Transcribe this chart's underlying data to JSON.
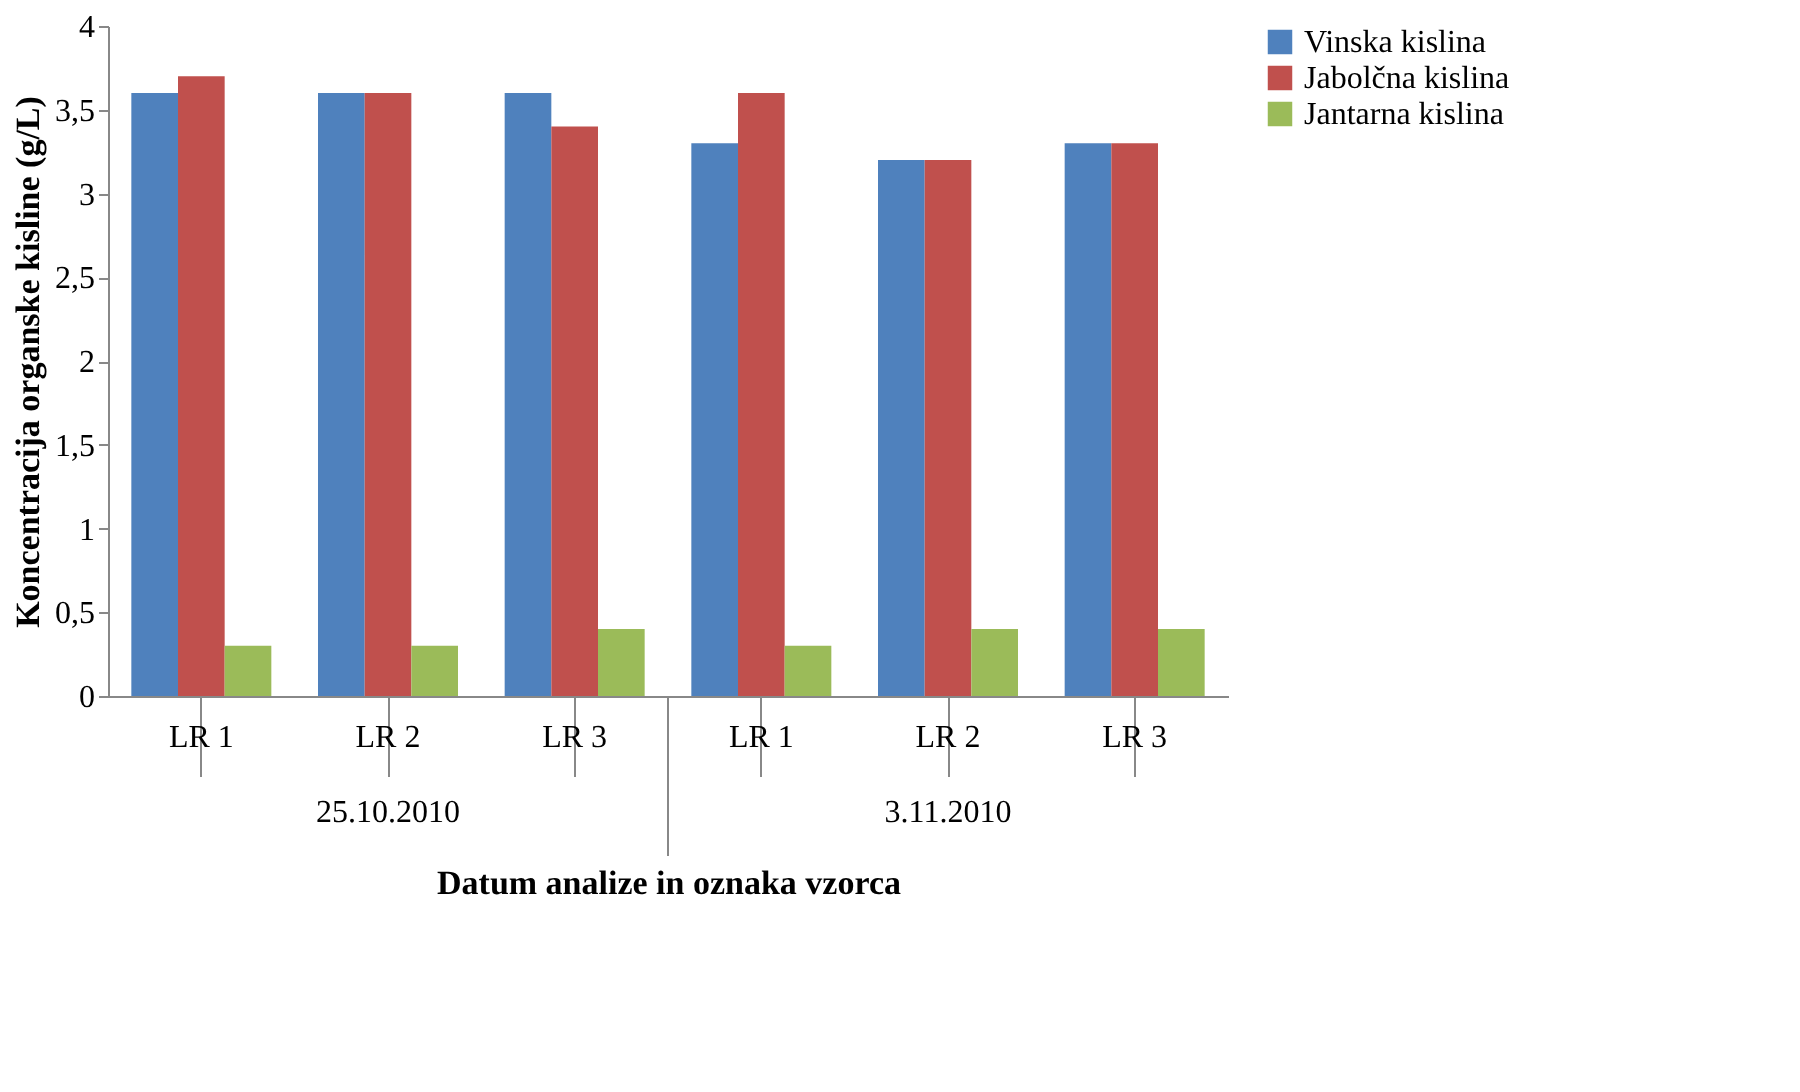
{
  "chart_data": {
    "type": "bar",
    "categories": [
      "LR 1",
      "LR 2",
      "LR 3",
      "LR 1",
      "LR 2",
      "LR 3"
    ],
    "series": [
      {
        "name": "Vinska kislina",
        "color": "#4f81bd",
        "values": [
          3.6,
          3.6,
          3.6,
          3.3,
          3.2,
          3.3
        ]
      },
      {
        "name": "Jabolčna kislina",
        "color": "#c0504d",
        "values": [
          3.7,
          3.6,
          3.4,
          3.6,
          3.2,
          3.3
        ]
      },
      {
        "name": "Jantarna kislina",
        "color": "#9bbb59",
        "values": [
          0.3,
          0.3,
          0.4,
          0.3,
          0.4,
          0.4
        ]
      }
    ],
    "ylabel": "Koncentracija organske kisline (g/L)",
    "xlabel": "Datum analize in oznaka vzorca",
    "annotations": [
      "25.10.2010",
      "3.11.2010"
    ],
    "ylim": [
      0,
      4
    ],
    "yticks": [
      0,
      {
        "value": 0.5,
        "label": "0,5"
      },
      1,
      {
        "value": 1.5,
        "label": "1,5"
      },
      2,
      {
        "value": 2.5,
        "label": "2,5"
      },
      3,
      {
        "value": 3.5,
        "label": "3,5"
      },
      4
    ],
    "grid": false,
    "legend": "right"
  }
}
